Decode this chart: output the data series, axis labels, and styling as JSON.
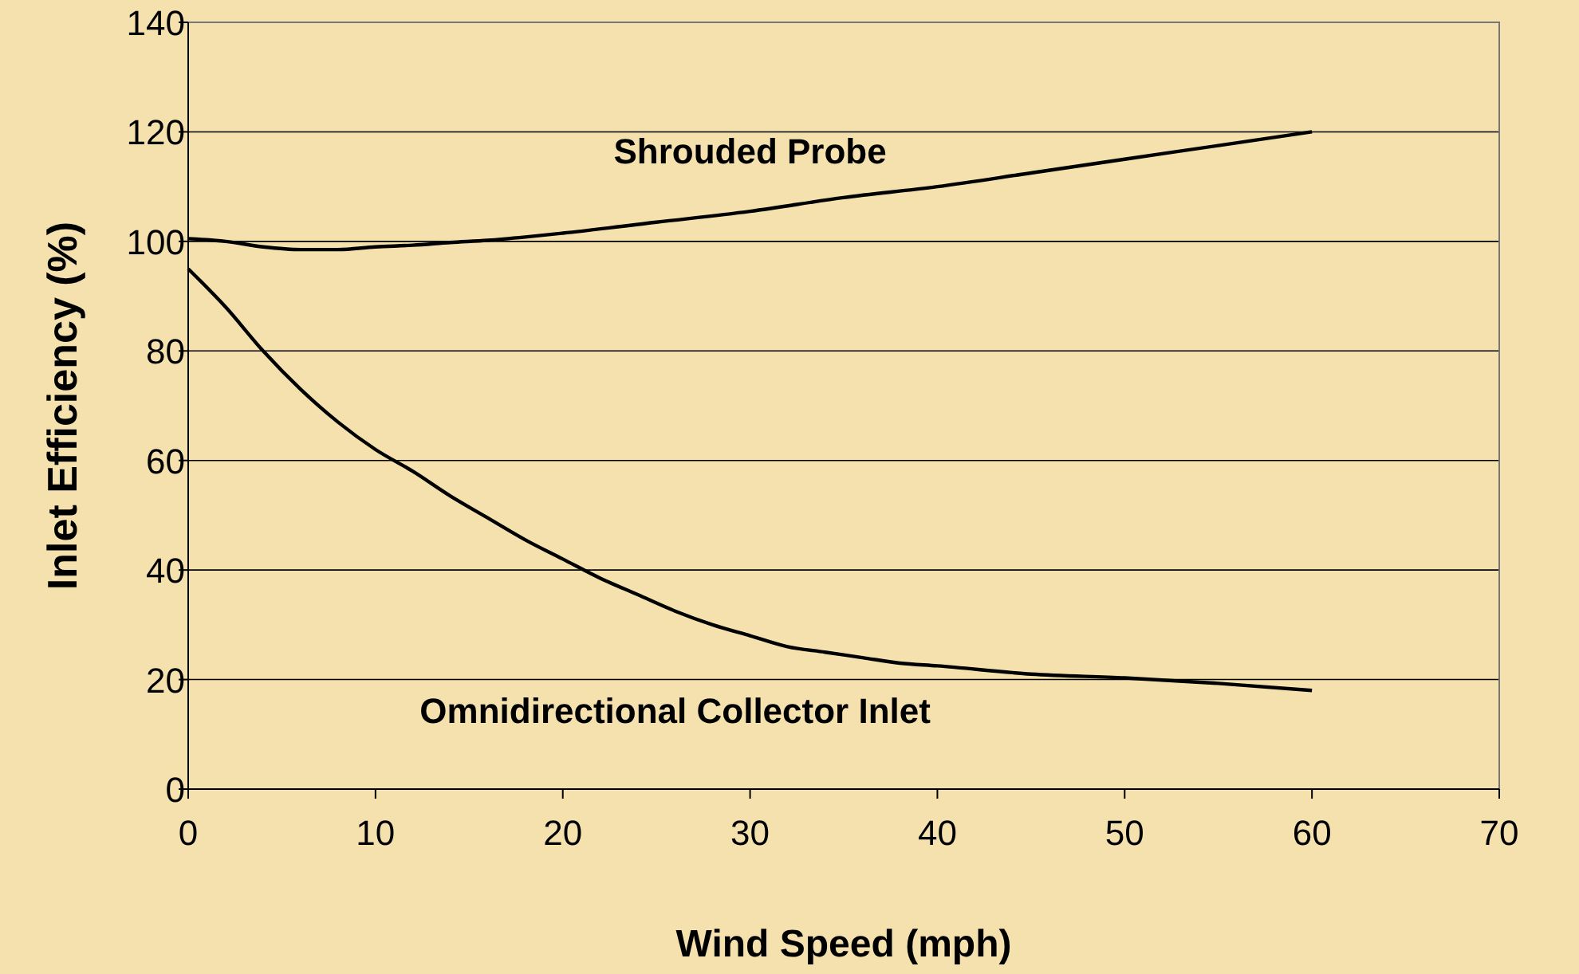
{
  "chart_data": {
    "type": "line",
    "xlabel": "Wind Speed (mph)",
    "ylabel": "Inlet Efficiency (%)",
    "xlim": [
      0,
      70
    ],
    "xticks": [
      0,
      10,
      20,
      30,
      40,
      50,
      60,
      70
    ],
    "ylim": [
      0,
      140
    ],
    "yticks": [
      0,
      20,
      40,
      60,
      80,
      100,
      120,
      140
    ],
    "grid": "y",
    "marker": "none",
    "line_style": "solid",
    "series": [
      {
        "name": "Shrouded Probe",
        "color": "#000000",
        "x": [
          0,
          2,
          4,
          6,
          8,
          10,
          12,
          14,
          16,
          18,
          20,
          25,
          30,
          35,
          40,
          45,
          50,
          55,
          60
        ],
        "values": [
          100.5,
          100,
          99,
          98.5,
          98.5,
          99,
          99.3,
          99.8,
          100.2,
          100.8,
          101.5,
          103.5,
          105.5,
          108,
          110,
          112.5,
          115,
          117.5,
          120
        ]
      },
      {
        "name": "Omnidirectional Collector Inlet",
        "color": "#000000",
        "x": [
          0,
          2,
          4,
          6,
          8,
          10,
          12,
          14,
          16,
          18,
          20,
          22,
          24,
          26,
          28,
          30,
          32,
          34,
          36,
          38,
          40,
          45,
          50,
          55,
          60
        ],
        "values": [
          95,
          88,
          80,
          73,
          67,
          62,
          58,
          53.5,
          49.5,
          45.5,
          42,
          38.5,
          35.5,
          32.5,
          30,
          28,
          26,
          25,
          24,
          23,
          22.5,
          21,
          20.3,
          19.3,
          18
        ]
      }
    ]
  }
}
